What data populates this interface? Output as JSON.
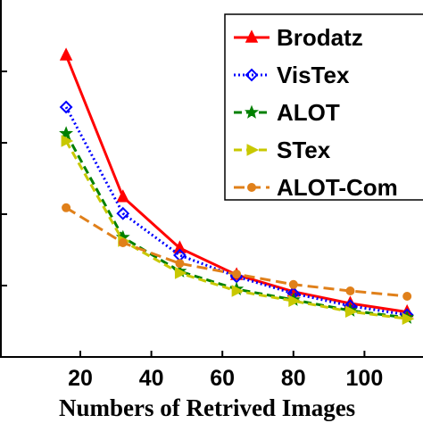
{
  "chart_data": {
    "type": "line",
    "title": "",
    "xlabel": "Numbers of Retrived Images",
    "ylabel": "",
    "xlim": [
      0,
      110
    ],
    "ylim": [
      0,
      1
    ],
    "x_ticks": [
      20,
      40,
      60,
      80,
      100
    ],
    "x_tick_labels": [
      "20",
      "40",
      "60",
      "80",
      "100"
    ],
    "grid": false,
    "legend_position": "top-right",
    "series": [
      {
        "name": "Brodatz",
        "color": "#ff0000",
        "dash": "",
        "marker": "triangle-up",
        "x": [
          16,
          32,
          48,
          64,
          80,
          96,
          112
        ],
        "y": [
          0.845,
          0.448,
          0.305,
          0.23,
          0.183,
          0.15,
          0.126
        ]
      },
      {
        "name": "VisTex",
        "color": "#0000ff",
        "dash": "2 3",
        "marker": "diamond",
        "x": [
          16,
          32,
          48,
          64,
          80,
          96,
          112
        ],
        "y": [
          0.7,
          0.402,
          0.285,
          0.225,
          0.178,
          0.143,
          0.118
        ]
      },
      {
        "name": "ALOT",
        "color": "#008000",
        "dash": "9 5",
        "marker": "star",
        "x": [
          16,
          32,
          48,
          64,
          80,
          96,
          112
        ],
        "y": [
          0.626,
          0.335,
          0.24,
          0.19,
          0.16,
          0.13,
          0.11
        ]
      },
      {
        "name": "STex",
        "color": "#c8c800",
        "dash": "9 5",
        "marker": "triangle-right",
        "x": [
          16,
          32,
          48,
          64,
          80,
          96,
          112
        ],
        "y": [
          0.605,
          0.325,
          0.235,
          0.185,
          0.157,
          0.127,
          0.107
        ]
      },
      {
        "name": "ALOT-Com",
        "color": "#e0801a",
        "dash": "12 6",
        "marker": "circle",
        "x": [
          16,
          32,
          48,
          64,
          80,
          96,
          112
        ],
        "y": [
          0.418,
          0.32,
          0.262,
          0.232,
          0.203,
          0.185,
          0.17
        ]
      }
    ]
  }
}
